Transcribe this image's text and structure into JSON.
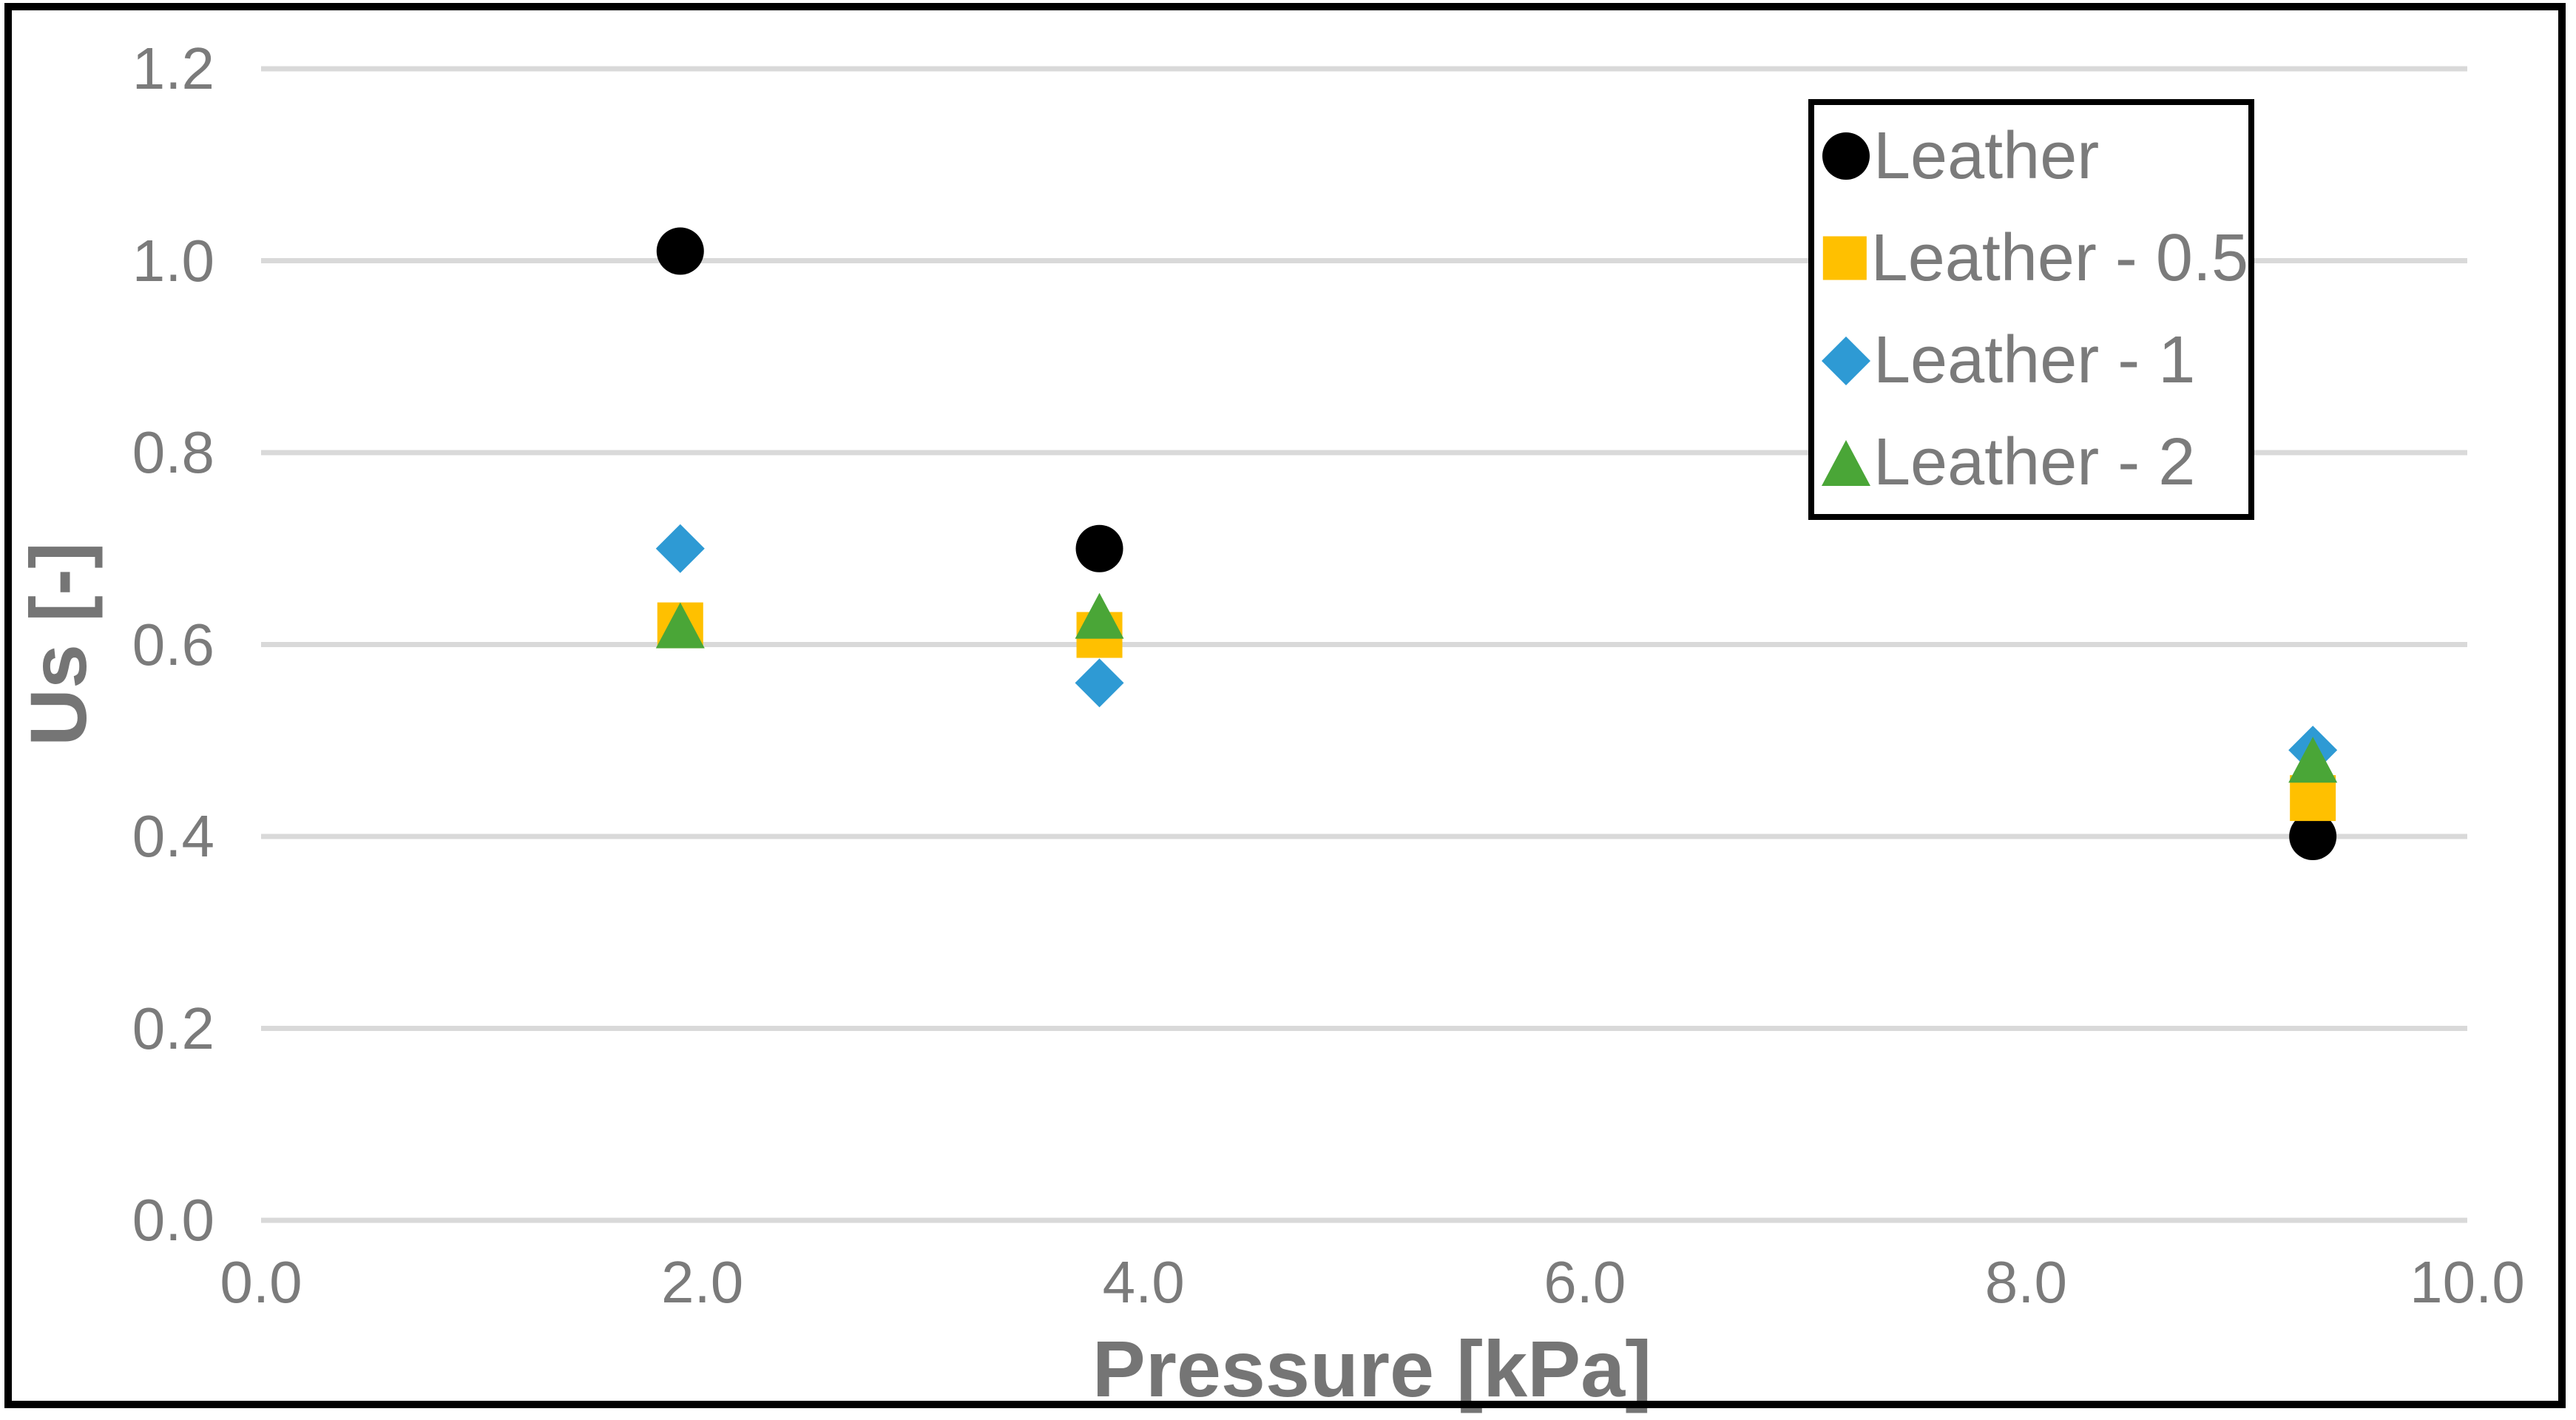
{
  "chart_data": {
    "type": "scatter",
    "title": "",
    "xlabel": "Pressure [kPa]",
    "ylabel": "Us [-]",
    "xlim": [
      0.0,
      10.0
    ],
    "ylim": [
      0.0,
      1.2
    ],
    "x_tick_labels": [
      "0.0",
      "2.0",
      "4.0",
      "6.0",
      "8.0",
      "10.0"
    ],
    "y_tick_labels": [
      "0.0",
      "0.2",
      "0.4",
      "0.6",
      "0.8",
      "1.0",
      "1.2"
    ],
    "grid": "horizontal",
    "legend_position": "top-right",
    "series": [
      {
        "name": "Leather",
        "marker": "circle",
        "color": "#000000",
        "points": [
          {
            "x": 1.9,
            "y": 1.01
          },
          {
            "x": 3.8,
            "y": 0.7
          },
          {
            "x": 9.3,
            "y": 0.4
          }
        ]
      },
      {
        "name": "Leather - 0.5",
        "marker": "square",
        "color": "#FFC000",
        "points": [
          {
            "x": 1.9,
            "y": 0.62
          },
          {
            "x": 3.8,
            "y": 0.61
          },
          {
            "x": 9.3,
            "y": 0.44
          }
        ]
      },
      {
        "name": "Leather - 1",
        "marker": "diamond",
        "color": "#2E9AD4",
        "points": [
          {
            "x": 1.9,
            "y": 0.7
          },
          {
            "x": 3.8,
            "y": 0.56
          },
          {
            "x": 9.3,
            "y": 0.49
          }
        ]
      },
      {
        "name": "Leather - 2",
        "marker": "triangle",
        "color": "#4AA637",
        "points": [
          {
            "x": 1.9,
            "y": 0.62
          },
          {
            "x": 3.8,
            "y": 0.63
          },
          {
            "x": 9.3,
            "y": 0.48
          }
        ]
      }
    ]
  },
  "styles": {
    "gridline_color": "#D9D9D9",
    "axis_text_color": "#7B7B7B",
    "border_color": "#000000",
    "background_color": "#FFFFFF"
  }
}
